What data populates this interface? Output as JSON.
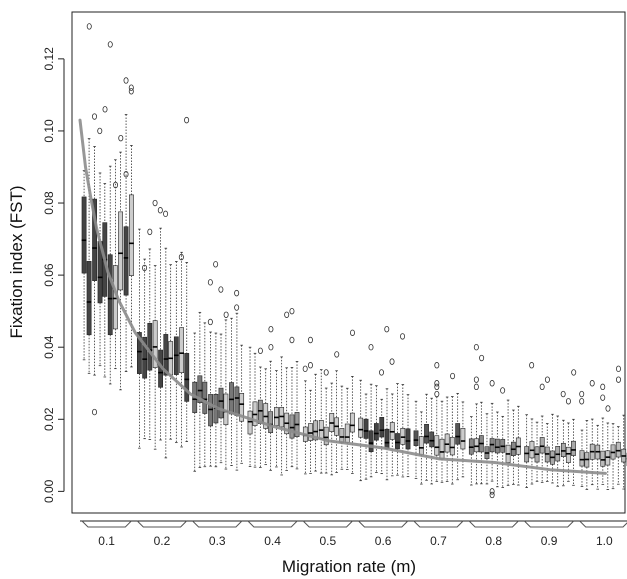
{
  "chart_data": {
    "type": "box",
    "xlabel": "Migration rate (m)",
    "ylabel": "Fixation index (FST)",
    "categories": [
      "0.1",
      "0.2",
      "0.3",
      "0.4",
      "0.5",
      "0.6",
      "0.7",
      "0.8",
      "0.9",
      "1.0"
    ],
    "yticks": [
      0.0,
      0.02,
      0.04,
      0.06,
      0.08,
      0.1,
      0.12
    ],
    "ytick_labels": [
      "0.00",
      "0.02",
      "0.04",
      "0.06",
      "0.08",
      "0.10",
      "0.12"
    ],
    "ylim": [
      -0.006,
      0.133
    ],
    "boxes_per_category": 10,
    "groups": [
      {
        "category": "0.1",
        "box_color": "#444444",
        "median": 0.061,
        "q1": 0.052,
        "q3": 0.072,
        "whisker_low": 0.033,
        "whisker_high": 0.093,
        "outliers_high": [
          0.129,
          0.124,
          0.114,
          0.112,
          0.111,
          0.106,
          0.104,
          0.1,
          0.098,
          0.088,
          0.085
        ],
        "outliers_low": [
          0.022
        ]
      },
      {
        "category": "0.2",
        "box_color": "#444444",
        "median": 0.036,
        "q1": 0.031,
        "q3": 0.042,
        "whisker_low": 0.012,
        "whisker_high": 0.068,
        "outliers_high": [
          0.103,
          0.08,
          0.078,
          0.077,
          0.072,
          0.065,
          0.062
        ],
        "outliers_low": []
      },
      {
        "category": "0.3",
        "box_color": "#777777",
        "median": 0.025,
        "q1": 0.021,
        "q3": 0.029,
        "whisker_low": 0.007,
        "whisker_high": 0.045,
        "outliers_high": [
          0.063,
          0.058,
          0.056,
          0.055,
          0.051,
          0.049,
          0.047
        ],
        "outliers_low": []
      },
      {
        "category": "0.4",
        "box_color": "#999999",
        "median": 0.02,
        "q1": 0.017,
        "q3": 0.023,
        "whisker_low": 0.006,
        "whisker_high": 0.037,
        "outliers_high": [
          0.05,
          0.049,
          0.045,
          0.042,
          0.04,
          0.039
        ],
        "outliers_low": []
      },
      {
        "category": "0.5",
        "box_color": "#bbbbbb",
        "median": 0.017,
        "q1": 0.015,
        "q3": 0.02,
        "whisker_low": 0.005,
        "whisker_high": 0.031,
        "outliers_high": [
          0.044,
          0.042,
          0.038,
          0.035,
          0.034,
          0.033
        ],
        "outliers_low": []
      },
      {
        "category": "0.6",
        "box_color": "#444444",
        "median": 0.015,
        "q1": 0.013,
        "q3": 0.018,
        "whisker_low": 0.004,
        "whisker_high": 0.028,
        "outliers_high": [
          0.045,
          0.043,
          0.04,
          0.036,
          0.033
        ],
        "outliers_low": []
      },
      {
        "category": "0.7",
        "box_color": "#555555",
        "median": 0.013,
        "q1": 0.011,
        "q3": 0.016,
        "whisker_low": 0.003,
        "whisker_high": 0.025,
        "outliers_high": [
          0.035,
          0.032,
          0.03,
          0.029,
          0.027
        ],
        "outliers_low": []
      },
      {
        "category": "0.8",
        "box_color": "#888888",
        "median": 0.012,
        "q1": 0.01,
        "q3": 0.014,
        "whisker_low": 0.002,
        "whisker_high": 0.023,
        "outliers_high": [
          0.04,
          0.037,
          0.031,
          0.03,
          0.029,
          0.028
        ],
        "outliers_low": [
          -0.001,
          0.0
        ]
      },
      {
        "category": "0.9",
        "box_color": "#aaaaaa",
        "median": 0.011,
        "q1": 0.009,
        "q3": 0.013,
        "whisker_low": 0.002,
        "whisker_high": 0.021,
        "outliers_high": [
          0.035,
          0.033,
          0.031,
          0.029,
          0.027,
          0.025
        ],
        "outliers_low": []
      },
      {
        "category": "1.0",
        "box_color": "#bbbbbb",
        "median": 0.01,
        "q1": 0.008,
        "q3": 0.012,
        "whisker_low": 0.001,
        "whisker_high": 0.019,
        "outliers_high": [
          0.034,
          0.031,
          0.03,
          0.029,
          0.027,
          0.026,
          0.025,
          0.023
        ],
        "outliers_low": []
      }
    ],
    "curve": {
      "color": "#8c8c8c",
      "x": [
        0.05,
        0.06,
        0.07,
        0.08,
        0.1,
        0.12,
        0.15,
        0.2,
        0.25,
        0.3,
        0.4,
        0.5,
        0.6,
        0.7,
        0.8,
        0.9,
        1.0
      ],
      "y": [
        0.103,
        0.09,
        0.081,
        0.073,
        0.061,
        0.053,
        0.044,
        0.034,
        0.027,
        0.023,
        0.018,
        0.014,
        0.012,
        0.009,
        0.008,
        0.006,
        0.005
      ]
    }
  }
}
